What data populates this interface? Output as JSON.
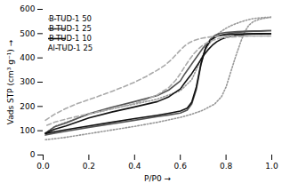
{
  "chart_data": {
    "type": "line",
    "title": "",
    "xlabel": "P/P0",
    "ylabel": "Vads STP (cm³ g⁻¹)",
    "xlim": [
      0,
      1.0
    ],
    "ylim": [
      0,
      600
    ],
    "xticks": [
      {
        "value": 0,
        "label": "0.0"
      },
      0.2,
      0.4,
      0.6,
      0.8,
      {
        "value": 1.0,
        "label": "1.0"
      }
    ],
    "yticks": [
      0,
      100,
      200,
      300,
      400,
      500,
      600
    ],
    "grid": false,
    "legend": "upper left",
    "series": [
      {
        "name": "B-TUD-1 50",
        "color": "#999999",
        "line_style": "dotted",
        "x": [
          0.01,
          0.05,
          0.1,
          0.2,
          0.3,
          0.4,
          0.5,
          0.6,
          0.65,
          0.7,
          0.75,
          0.78,
          0.8,
          0.82,
          0.84,
          0.86,
          0.88,
          0.9,
          0.92,
          0.95,
          0.98,
          1.0,
          null,
          1.0,
          0.98,
          0.95,
          0.92,
          0.9,
          0.88,
          0.86,
          0.84,
          0.82,
          0.8,
          0.78,
          0.76,
          0.74,
          0.72,
          0.7,
          0.65,
          0.6,
          0.5,
          0.4,
          0.3,
          0.2,
          0.1,
          0.05,
          0.01
        ],
        "values": [
          63,
          67,
          73,
          88,
          103,
          118,
          135,
          155,
          168,
          185,
          210,
          240,
          280,
          340,
          400,
          455,
          505,
          535,
          550,
          560,
          565,
          568,
          null,
          568,
          567,
          565,
          562,
          558,
          553,
          547,
          540,
          532,
          522,
          510,
          495,
          475,
          450,
          415,
          310,
          265,
          230,
          210,
          190,
          168,
          135,
          118,
          90
        ]
      },
      {
        "name": "B-TUD-1 25",
        "color": "#555555",
        "line_style": "solid",
        "x": [
          0.01,
          0.05,
          0.1,
          0.2,
          0.3,
          0.4,
          0.5,
          0.55,
          0.6,
          0.63,
          0.65,
          0.67,
          0.69,
          0.71,
          0.73,
          0.75,
          0.77,
          0.8,
          0.85,
          0.9,
          0.95,
          1.0,
          null,
          1.0,
          0.98,
          0.95,
          0.92,
          0.9,
          0.88,
          0.86,
          0.84,
          0.82,
          0.8,
          0.78,
          0.76,
          0.74,
          0.72,
          0.7,
          0.68,
          0.65,
          0.62,
          0.6,
          0.55,
          0.5,
          0.4,
          0.3,
          0.2,
          0.1,
          0.05,
          0.01
        ],
        "values": [
          82,
          90,
          98,
          114,
          128,
          143,
          158,
          165,
          173,
          185,
          210,
          270,
          370,
          440,
          475,
          492,
          500,
          505,
          508,
          510,
          511,
          512,
          null,
          512,
          512,
          511,
          510,
          509,
          508,
          506,
          504,
          501,
          498,
          494,
          488,
          478,
          463,
          442,
          415,
          375,
          335,
          305,
          268,
          245,
          220,
          197,
          170,
          132,
          116,
          90
        ]
      },
      {
        "name": "B-TUD-1 10",
        "color": "#111111",
        "line_style": "solid",
        "x": [
          0.01,
          0.05,
          0.1,
          0.2,
          0.3,
          0.4,
          0.5,
          0.55,
          0.6,
          0.63,
          0.65,
          0.67,
          0.69,
          0.71,
          0.73,
          0.75,
          0.77,
          0.8,
          0.85,
          0.9,
          0.95,
          1.0,
          null,
          1.0,
          0.98,
          0.95,
          0.92,
          0.9,
          0.88,
          0.86,
          0.84,
          0.82,
          0.8,
          0.78,
          0.76,
          0.74,
          0.72,
          0.7,
          0.68,
          0.65,
          0.62,
          0.6,
          0.55,
          0.5,
          0.4,
          0.3,
          0.2,
          0.1,
          0.05,
          0.01
        ],
        "values": [
          88,
          96,
          104,
          120,
          135,
          150,
          164,
          172,
          181,
          193,
          218,
          280,
          375,
          440,
          470,
          485,
          492,
          496,
          498,
          499,
          500,
          500,
          null,
          500,
          500,
          499,
          499,
          498,
          497,
          495,
          492,
          489,
          484,
          477,
          467,
          452,
          432,
          408,
          378,
          335,
          298,
          272,
          240,
          220,
          198,
          177,
          153,
          120,
          106,
          90
        ]
      },
      {
        "name": "Al-TUD-1 25",
        "color": "#aaaaaa",
        "line_style": "dashed",
        "x": [
          0.01,
          0.05,
          0.1,
          0.15,
          0.2,
          0.25,
          0.3,
          0.35,
          0.4,
          0.45,
          0.5,
          0.53,
          0.56,
          0.58,
          0.6,
          0.62,
          0.64,
          0.66,
          0.68,
          0.7,
          0.72,
          0.75,
          0.8,
          0.85,
          0.9,
          0.95,
          1.0,
          null,
          1.0,
          0.98,
          0.95,
          0.9,
          0.88,
          0.86,
          0.84,
          0.82,
          0.8,
          0.78,
          0.76,
          0.74,
          0.72,
          0.7,
          0.68,
          0.66,
          0.64,
          0.62,
          0.6,
          0.58,
          0.55,
          0.5,
          0.45,
          0.4,
          0.3,
          0.2,
          0.1,
          0.05,
          0.01
        ],
        "values": [
          143,
          168,
          192,
          212,
          228,
          245,
          262,
          280,
          300,
          323,
          350,
          368,
          392,
          412,
          432,
          450,
          463,
          472,
          478,
          482,
          485,
          488,
          490,
          490,
          490,
          490,
          490,
          null,
          490,
          490,
          490,
          490,
          489,
          488,
          487,
          486,
          484,
          482,
          478,
          472,
          464,
          453,
          438,
          418,
          393,
          365,
          335,
          308,
          278,
          248,
          228,
          212,
          190,
          170,
          148,
          135,
          120
        ]
      }
    ]
  }
}
